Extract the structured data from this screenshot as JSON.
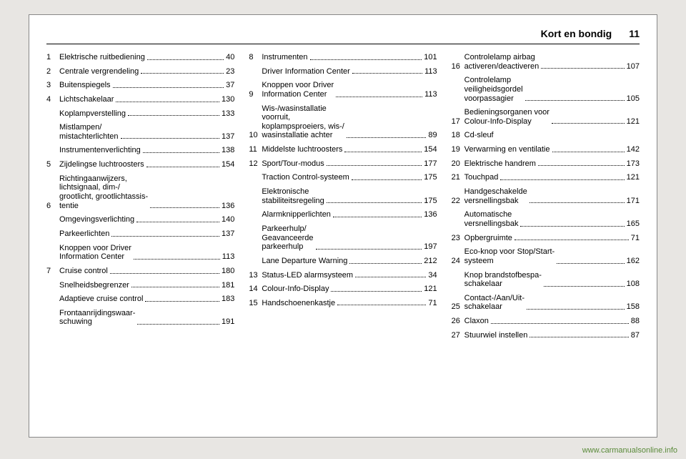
{
  "header": {
    "title": "Kort en bondig",
    "page_number": "11"
  },
  "footer": {
    "url": "www.carmanualsonline.info"
  },
  "columns": [
    [
      {
        "num": "1",
        "label": "Elektrische ruitbediening",
        "page": "40"
      },
      {
        "num": "2",
        "label": "Centrale vergrendeling",
        "page": "23"
      },
      {
        "num": "3",
        "label": "Buitenspiegels",
        "page": "37"
      },
      {
        "num": "4",
        "label": "Lichtschakelaar",
        "page": "130"
      },
      {
        "num": "",
        "label": "Koplampverstelling",
        "page": "133"
      },
      {
        "num": "",
        "label": "Mistlampen/\nmistachterlichten",
        "page": "137"
      },
      {
        "num": "",
        "label": "Instrumentenverlichting",
        "page": "138"
      },
      {
        "num": "5",
        "label": "Zijdelingse luchtroosters",
        "page": "154"
      },
      {
        "num": "6",
        "label": "Richtingaanwijzers,\nlichtsignaal, dim-/\ngrootlicht, grootlichtassis-\ntentie",
        "page": "136"
      },
      {
        "num": "",
        "label": "Omgevingsverlichting",
        "page": "140"
      },
      {
        "num": "",
        "label": "Parkeerlichten",
        "page": "137"
      },
      {
        "num": "",
        "label": "Knoppen voor Driver\nInformation Center",
        "page": "113"
      },
      {
        "num": "7",
        "label": "Cruise control",
        "page": "180"
      },
      {
        "num": "",
        "label": "Snelheidsbegrenzer",
        "page": "181"
      },
      {
        "num": "",
        "label": "Adaptieve cruise control",
        "page": "183"
      },
      {
        "num": "",
        "label": "Frontaanrijdingswaar-\nschuwing",
        "page": "191"
      }
    ],
    [
      {
        "num": "8",
        "label": "Instrumenten",
        "page": "101"
      },
      {
        "num": "",
        "label": "Driver Information Center",
        "page": "113"
      },
      {
        "num": "9",
        "label": "Knoppen voor Driver\nInformation Center",
        "page": "113"
      },
      {
        "num": "10",
        "label": "Wis-/wasinstallatie\nvoorruit,\nkoplampsproeiers, wis-/\nwasinstallatie achter",
        "page": "89"
      },
      {
        "num": "11",
        "label": "Middelste luchtroosters",
        "page": "154"
      },
      {
        "num": "12",
        "label": "Sport/Tour-modus",
        "page": "177"
      },
      {
        "num": "",
        "label": "Traction Control-systeem",
        "page": "175"
      },
      {
        "num": "",
        "label": "Elektronische\nstabiliteitsregeling",
        "page": "175"
      },
      {
        "num": "",
        "label": "Alarmknipperlichten",
        "page": "136"
      },
      {
        "num": "",
        "label": "Parkeerhulp/\nGeavanceerde\nparkeerhulp",
        "page": "197"
      },
      {
        "num": "",
        "label": "Lane Departure Warning",
        "page": "212"
      },
      {
        "num": "13",
        "label": "Status-LED alarmsysteem",
        "page": "34"
      },
      {
        "num": "14",
        "label": "Colour-Info-Display",
        "page": "121"
      },
      {
        "num": "15",
        "label": "Handschoenenkastje",
        "page": "71"
      }
    ],
    [
      {
        "num": "16",
        "label": "Controlelamp airbag\nactiveren/deactiveren",
        "page": "107"
      },
      {
        "num": "",
        "label": "Controlelamp\nveiligheidsgordel\nvoorpassagier",
        "page": "105"
      },
      {
        "num": "17",
        "label": "Bedieningsorganen voor\nColour-Info-Display",
        "page": "121"
      },
      {
        "num": "18",
        "label": "Cd-sleuf",
        "page": ""
      },
      {
        "num": "19",
        "label": "Verwarming en ventilatie",
        "page": "142"
      },
      {
        "num": "20",
        "label": "Elektrische handrem",
        "page": "173"
      },
      {
        "num": "21",
        "label": "Touchpad",
        "page": "121"
      },
      {
        "num": "22",
        "label": "Handgeschakelde\nversnellingsbak",
        "page": "171"
      },
      {
        "num": "",
        "label": "Automatische\nversnellingsbak",
        "page": "165"
      },
      {
        "num": "23",
        "label": "Opbergruimte",
        "page": "71"
      },
      {
        "num": "24",
        "label": "Eco-knop voor Stop/Start-\nsysteem",
        "page": "162"
      },
      {
        "num": "",
        "label": "Knop brandstofbespa-\nschakelaar",
        "page": "108"
      },
      {
        "num": "25",
        "label": "Contact-/Aan/Uit-\nschakelaar",
        "page": "158"
      },
      {
        "num": "26",
        "label": "Claxon",
        "page": "88"
      },
      {
        "num": "27",
        "label": "Stuurwiel instellen",
        "page": "87"
      }
    ]
  ]
}
